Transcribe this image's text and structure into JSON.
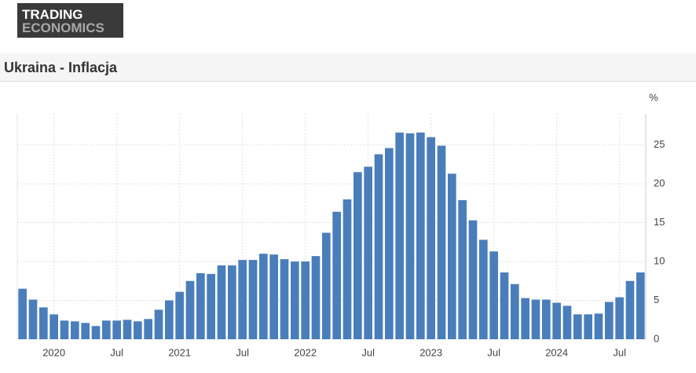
{
  "logo": {
    "line1": "TRADING",
    "line2": "ECONOMICS"
  },
  "header": {
    "title": "Ukraina - Inflacja"
  },
  "chart_data": {
    "type": "bar",
    "unit_label": "%",
    "color": "#4a7ebb",
    "grid": true,
    "categories": [
      null,
      null,
      null,
      "2020",
      null,
      null,
      null,
      null,
      null,
      "Jul",
      null,
      null,
      null,
      null,
      null,
      "2021",
      null,
      null,
      null,
      null,
      null,
      "Jul",
      null,
      null,
      null,
      null,
      null,
      "2022",
      null,
      null,
      null,
      null,
      null,
      "Jul",
      null,
      null,
      null,
      null,
      null,
      "2023",
      null,
      null,
      null,
      null,
      null,
      "Jul",
      null,
      null,
      null,
      null,
      null,
      "2024",
      null,
      null,
      null,
      null,
      null,
      "Jul",
      null,
      null
    ],
    "values": [
      6.5,
      5.1,
      4.1,
      3.2,
      2.4,
      2.3,
      2.1,
      1.7,
      2.4,
      2.4,
      2.5,
      2.3,
      2.6,
      3.8,
      5.0,
      6.1,
      7.5,
      8.5,
      8.4,
      9.5,
      9.5,
      10.2,
      10.2,
      11.0,
      10.9,
      10.3,
      10.0,
      10.0,
      10.7,
      13.7,
      16.4,
      18.0,
      21.5,
      22.2,
      23.8,
      24.6,
      26.6,
      26.5,
      26.6,
      26.0,
      24.9,
      21.3,
      17.9,
      15.3,
      12.8,
      11.3,
      8.6,
      7.1,
      5.3,
      5.1,
      5.1,
      4.7,
      4.3,
      3.2,
      3.2,
      3.3,
      4.8,
      5.4,
      7.5,
      8.6
    ],
    "ylim": [
      0,
      29
    ],
    "yticks": [
      0,
      5,
      10,
      15,
      20,
      25
    ]
  }
}
